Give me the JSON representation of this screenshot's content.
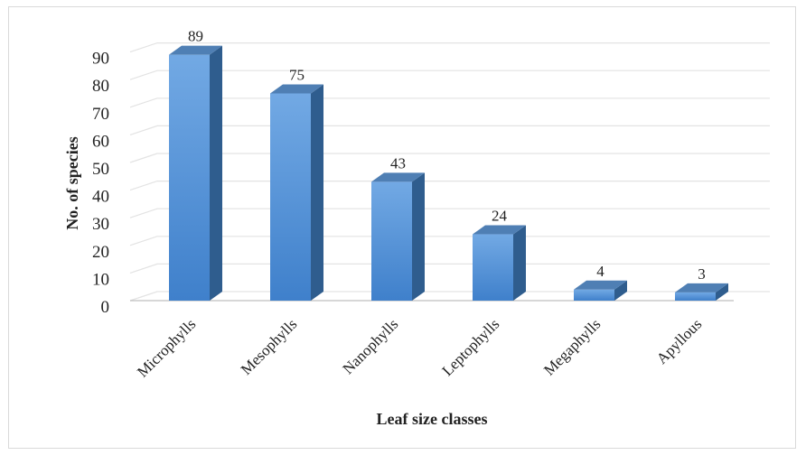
{
  "chart_data": {
    "type": "bar",
    "categories": [
      "Microphylls",
      "Mesophylls",
      "Nanophylls",
      "Leptophylls",
      "Megaphylls",
      "Apyllous"
    ],
    "values": [
      89,
      75,
      43,
      24,
      4,
      3
    ],
    "data_labels": [
      "89",
      "75",
      "43",
      "24",
      "4",
      "3"
    ],
    "xlabel": "Leaf size classes",
    "ylabel": "No. of species",
    "ylim": [
      0,
      90
    ],
    "yticks": [
      "0",
      "10",
      "20",
      "30",
      "40",
      "50",
      "60",
      "70",
      "80",
      "90"
    ],
    "grid": true,
    "style": "3d-column",
    "colors": {
      "bar_front_top": "#72a9e4",
      "bar_front_bottom": "#3f80cb",
      "bar_side": "#2f5d8e",
      "bar_top": "#4f7fb4",
      "gridline": "#e3e3e3",
      "axis": "#bfbfbf"
    }
  }
}
